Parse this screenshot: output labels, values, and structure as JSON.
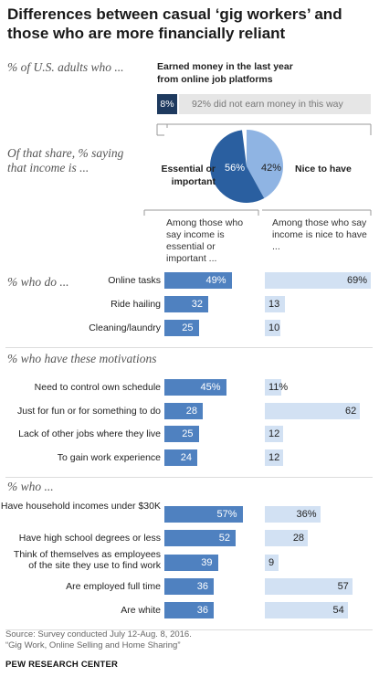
{
  "title": "Differences between casual ‘gig workers’ and those who are more financially reliant",
  "intro": {
    "prompt_label": "% of U.S. adults who ...",
    "earned_label": "Earned money in the last year from online job platforms",
    "earned_value": "8%",
    "not_earned_label": "92% did not earn money in this way",
    "earned_pct": 8,
    "not_earned_pct": 92
  },
  "pie": {
    "prompt_label": "Of that share, % saying that income is ...",
    "essential_label": "Essential or important",
    "nice_label": "Nice to have",
    "essential_value": "56%",
    "nice_value": "42%",
    "essential_pct": 56,
    "nice_pct": 42,
    "essential_color": "#2a5fa0",
    "nice_color": "#8fb4e3"
  },
  "column_heads": {
    "left": "Among those who say income is essential or important ...",
    "right": "Among those who say income is nice to have ..."
  },
  "colors": {
    "left_bar": "#4f81c0",
    "right_bar": "#d2e1f3",
    "dark_box": "#1e3a5f",
    "light_bar": "#e6e6e6"
  },
  "chart_data": {
    "type": "bar",
    "series_left_name": "Among those who say income is essential or important ...",
    "series_right_name": "Among those who say income is nice to have ...",
    "sections": [
      {
        "heading": "% who do ...",
        "rows": [
          {
            "label": "Online tasks",
            "left": 49,
            "right": 69,
            "left_text": "49%",
            "right_text": "69%"
          },
          {
            "label": "Ride hailing",
            "left": 32,
            "right": 13,
            "left_text": "32",
            "right_text": "13"
          },
          {
            "label": "Cleaning/laundry",
            "left": 25,
            "right": 10,
            "left_text": "25",
            "right_text": "10"
          }
        ]
      },
      {
        "heading": "% who have these motivations",
        "rows": [
          {
            "label": "Need to control own schedule",
            "left": 45,
            "right": 11,
            "left_text": "45%",
            "right_text": "11%"
          },
          {
            "label": "Just for fun or for something to do",
            "left": 28,
            "right": 62,
            "left_text": "28",
            "right_text": "62"
          },
          {
            "label": "Lack of other jobs where they live",
            "left": 25,
            "right": 12,
            "left_text": "25",
            "right_text": "12"
          },
          {
            "label": "To gain work experience",
            "left": 24,
            "right": 12,
            "left_text": "24",
            "right_text": "12"
          }
        ]
      },
      {
        "heading": "% who ...",
        "rows": [
          {
            "label": "Have household incomes under $30K",
            "left": 57,
            "right": 36,
            "left_text": "57%",
            "right_text": "36%"
          },
          {
            "label": "Have high school degrees or less",
            "left": 52,
            "right": 28,
            "left_text": "52",
            "right_text": "28"
          },
          {
            "label": "Think of themselves as employees of the site they use to find work",
            "left": 39,
            "right": 9,
            "left_text": "39",
            "right_text": "9"
          },
          {
            "label": "Are employed full time",
            "left": 36,
            "right": 57,
            "left_text": "36",
            "right_text": "57"
          },
          {
            "label": "Are white",
            "left": 36,
            "right": 54,
            "left_text": "36",
            "right_text": "54"
          }
        ]
      }
    ]
  },
  "source_line1": "Source: Survey conducted July 12-Aug. 8, 2016.",
  "source_line2": "“Gig Work, Online Selling and Home Sharing”",
  "footer": "PEW RESEARCH CENTER"
}
